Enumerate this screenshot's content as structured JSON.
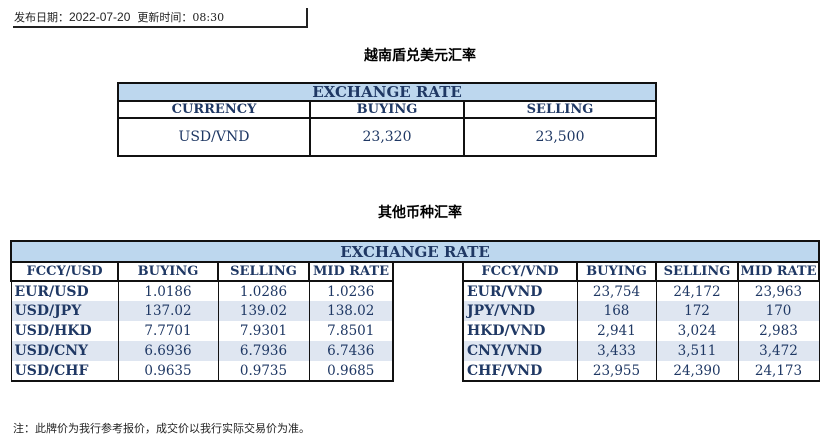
{
  "publish": {
    "date_label": "发布日期：",
    "date": "2022-07-20",
    "time_label": "更新时间：",
    "time": "08:30"
  },
  "usd_vnd": {
    "title": "越南盾兑美元汇率",
    "band": "EXCHANGE RATE",
    "headers": [
      "CURRENCY",
      "BUYING",
      "SELLING"
    ],
    "row": [
      "USD/VND",
      "23,320",
      "23,500"
    ]
  },
  "others": {
    "title": "其他币种汇率",
    "band": "EXCHANGE  RATE",
    "left_headers": [
      "FCCY/USD",
      "BUYING",
      "SELLING",
      "MID RATE"
    ],
    "right_headers": [
      "FCCY/VND",
      "BUYING",
      "SELLING",
      "MID RATE"
    ],
    "left_rows": [
      [
        "EUR/USD",
        "1.0186",
        "1.0286",
        "1.0236"
      ],
      [
        "USD/JPY",
        "137.02",
        "139.02",
        "138.02"
      ],
      [
        "USD/HKD",
        "7.7701",
        "7.9301",
        "7.8501"
      ],
      [
        "USD/CNY",
        "6.6936",
        "6.7936",
        "6.7436"
      ],
      [
        "USD/CHF",
        "0.9635",
        "0.9735",
        "0.9685"
      ]
    ],
    "right_rows": [
      [
        "EUR/VND",
        "23,754",
        "24,172",
        "23,963"
      ],
      [
        "JPY/VND",
        "168",
        "172",
        "170"
      ],
      [
        "HKD/VND",
        "2,941",
        "3,024",
        "2,983"
      ],
      [
        "CNY/VND",
        "3,433",
        "3,511",
        "3,472"
      ],
      [
        "CHF/VND",
        "23,955",
        "24,390",
        "24,173"
      ]
    ]
  },
  "note": "注：此牌价为我行参考报价，成交价以我行实际交易价为准。",
  "colors": {
    "band": "#bdd7ee",
    "text": "#1f3864",
    "alt_row": "#dfe6f1"
  }
}
